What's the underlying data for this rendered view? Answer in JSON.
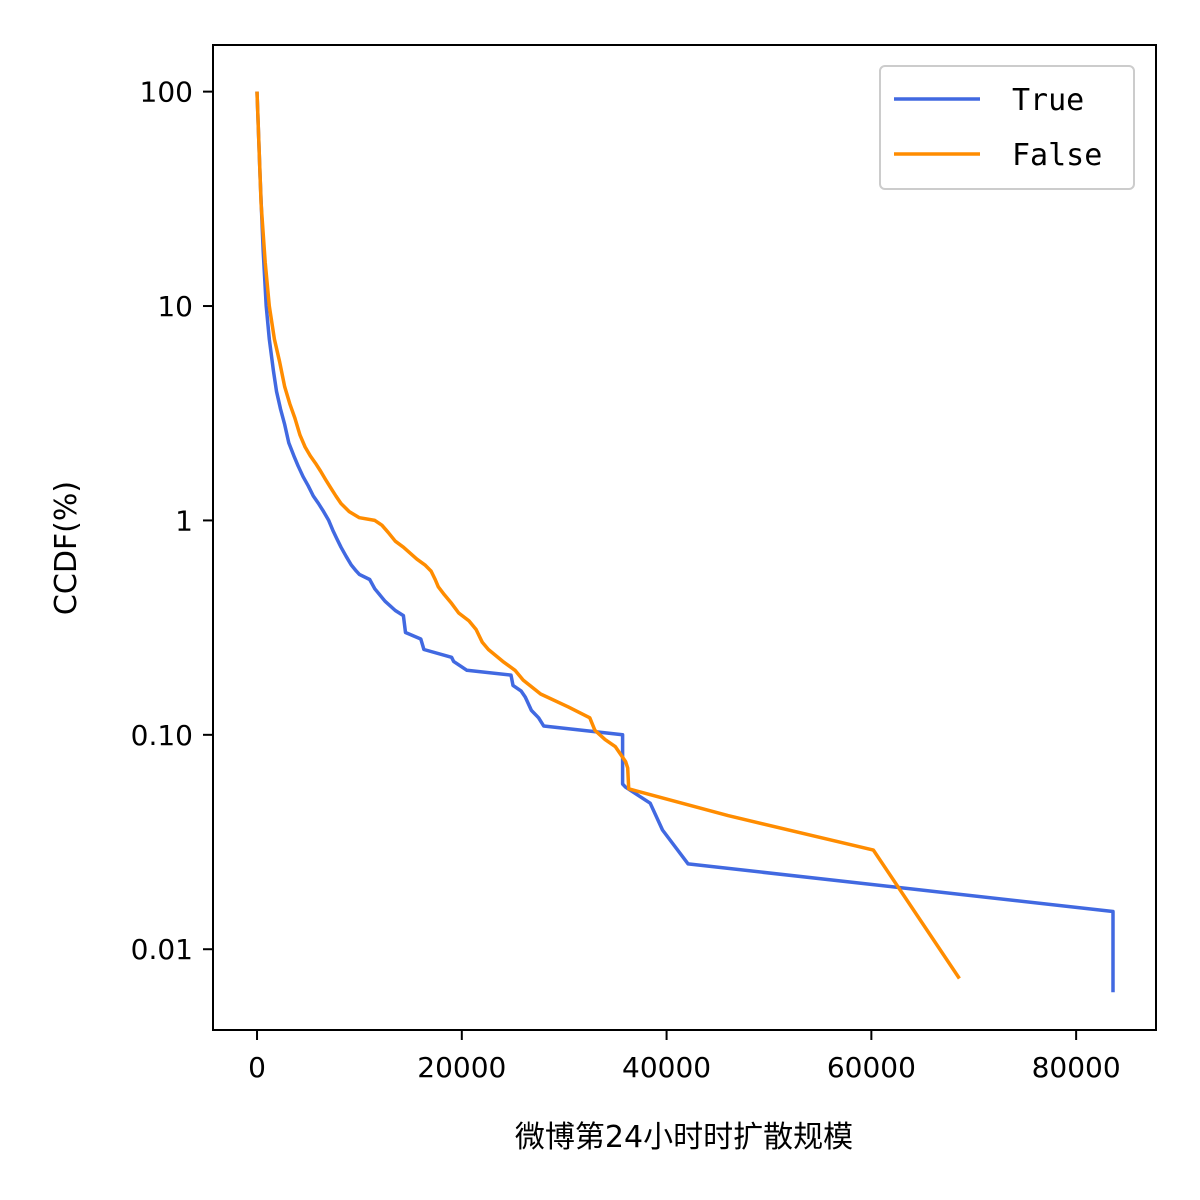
{
  "chart_data": {
    "type": "line",
    "title": "",
    "xlabel": "微博第24小时时扩散规模",
    "ylabel": "CCDF(%)",
    "x_ticks": [
      0,
      20000,
      40000,
      60000,
      80000
    ],
    "x_tick_labels": [
      "0",
      "20000",
      "40000",
      "60000",
      "80000"
    ],
    "y_ticks": [
      100,
      10,
      1,
      0.1,
      0.01
    ],
    "y_tick_labels": [
      "100",
      "10",
      "1",
      "0.10",
      "0.01"
    ],
    "y_scale": "log",
    "xlim": [
      -4300,
      87800
    ],
    "ylim": [
      0.0042,
      165
    ],
    "grid": false,
    "legend_position": "top-right",
    "series": [
      {
        "name": "True",
        "color": "#4169e1",
        "x": [
          0,
          300,
          600,
          900,
          1200,
          1600,
          1900,
          2300,
          2700,
          3100,
          3600,
          4000,
          4500,
          5000,
          5500,
          6000,
          6500,
          7000,
          7400,
          7800,
          8200,
          8700,
          9200,
          9700,
          10000,
          11000,
          11500,
          12500,
          13500,
          14300,
          14500,
          16000,
          16300,
          19000,
          19200,
          20500,
          24800,
          25000,
          25800,
          26200,
          26800,
          27500,
          28000,
          35700,
          35700,
          36000,
          38400,
          39600,
          42100,
          83600,
          83600
        ],
        "y": [
          100,
          40,
          18,
          10,
          7,
          5,
          4,
          3.3,
          2.8,
          2.3,
          2.0,
          1.8,
          1.6,
          1.45,
          1.3,
          1.2,
          1.1,
          1.0,
          0.9,
          0.82,
          0.75,
          0.68,
          0.62,
          0.58,
          0.56,
          0.53,
          0.48,
          0.42,
          0.38,
          0.36,
          0.3,
          0.28,
          0.25,
          0.23,
          0.22,
          0.2,
          0.19,
          0.17,
          0.16,
          0.15,
          0.13,
          0.12,
          0.11,
          0.1,
          0.059,
          0.057,
          0.048,
          0.036,
          0.025,
          0.015,
          0.0063
        ]
      },
      {
        "name": "False",
        "color": "#ff8c00",
        "x": [
          0,
          400,
          800,
          1200,
          1700,
          2200,
          2700,
          3200,
          3700,
          4200,
          4700,
          5200,
          5700,
          6200,
          6700,
          7200,
          7700,
          8200,
          9000,
          10000,
          11500,
          12200,
          12800,
          13500,
          14300,
          15000,
          15600,
          16400,
          17000,
          17400,
          17700,
          18300,
          19000,
          19700,
          20700,
          21400,
          22000,
          22600,
          24000,
          25200,
          26000,
          27700,
          30400,
          32500,
          33000,
          34000,
          35000,
          36000,
          36200,
          36300,
          46000,
          60200,
          68600
        ],
        "y": [
          100,
          30,
          16,
          10,
          7,
          5.5,
          4.2,
          3.5,
          3.0,
          2.5,
          2.2,
          2.0,
          1.85,
          1.7,
          1.55,
          1.42,
          1.3,
          1.2,
          1.1,
          1.03,
          1.0,
          0.95,
          0.88,
          0.8,
          0.75,
          0.7,
          0.66,
          0.62,
          0.58,
          0.53,
          0.49,
          0.45,
          0.41,
          0.37,
          0.34,
          0.31,
          0.27,
          0.25,
          0.22,
          0.2,
          0.18,
          0.155,
          0.135,
          0.12,
          0.105,
          0.095,
          0.088,
          0.075,
          0.07,
          0.056,
          0.042,
          0.029,
          0.0073
        ]
      }
    ]
  }
}
